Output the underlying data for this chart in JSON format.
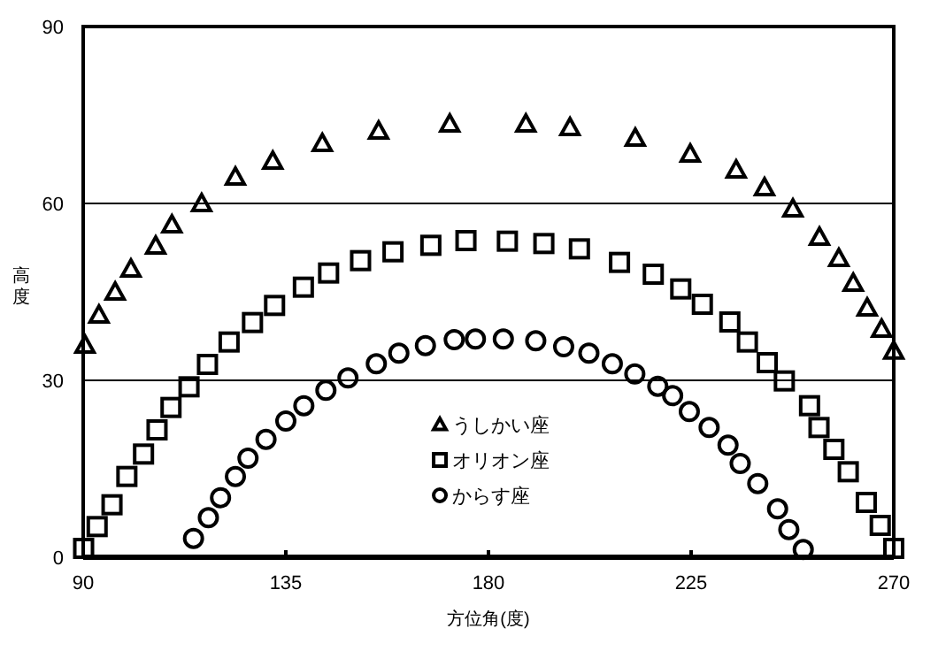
{
  "chart_data": {
    "type": "scatter",
    "xlabel": "方位角(度)",
    "ylabel": "高度",
    "xlim": [
      90,
      270
    ],
    "xticks": [
      90,
      135,
      180,
      225,
      270
    ],
    "ylim": [
      0,
      90
    ],
    "yticks": [
      0,
      30,
      60,
      90
    ],
    "grid": "y",
    "legend": "bottom",
    "series": [
      {
        "name": "うしかい座",
        "color": "#000000",
        "marker": "triangle",
        "x": [
          90.4,
          93.5,
          97.1,
          100.6,
          106.1,
          109.7,
          116.3,
          123.8,
          132.1,
          143.1,
          155.6,
          171.4,
          188.3,
          198.1,
          212.6,
          224.8,
          235.0,
          241.3,
          247.6,
          253.5,
          257.8,
          261.0,
          264.1,
          267.3,
          270.0
        ],
        "values": [
          36.0,
          41.1,
          45.0,
          48.9,
          52.8,
          56.4,
          60.0,
          64.5,
          67.2,
          70.2,
          72.3,
          73.5,
          73.5,
          72.9,
          71.1,
          68.4,
          65.7,
          62.7,
          59.1,
          54.3,
          50.7,
          46.5,
          42.3,
          38.7,
          35.0
        ]
      },
      {
        "name": "オリオン座",
        "color": "#000000",
        "marker": "square",
        "x": [
          90.1,
          93.1,
          96.4,
          99.7,
          103.4,
          106.4,
          109.5,
          113.5,
          117.6,
          122.4,
          127.6,
          132.5,
          138.9,
          144.5,
          151.6,
          158.8,
          167.2,
          175.0,
          184.2,
          192.3,
          200.2,
          209.1,
          216.6,
          222.7,
          227.5,
          233.6,
          237.5,
          241.9,
          245.7,
          251.3,
          253.4,
          256.7,
          259.9,
          263.9,
          267.0,
          270.0
        ],
        "values": [
          1.5,
          5.2,
          8.9,
          13.7,
          17.5,
          21.6,
          25.4,
          28.9,
          32.7,
          36.5,
          39.8,
          42.7,
          45.8,
          48.2,
          50.3,
          51.8,
          52.9,
          53.7,
          53.6,
          53.2,
          52.3,
          50.0,
          48.0,
          45.5,
          42.9,
          39.9,
          36.5,
          33.0,
          29.9,
          25.7,
          22.0,
          18.3,
          14.5,
          9.3,
          5.4,
          1.5
        ]
      },
      {
        "name": "からす座",
        "color": "#000000",
        "marker": "circle",
        "x": [
          114.5,
          117.8,
          120.5,
          123.8,
          126.6,
          130.6,
          135.0,
          139.0,
          143.9,
          148.8,
          155.1,
          160.1,
          166.0,
          172.4,
          177.1,
          183.3,
          190.5,
          196.7,
          202.3,
          207.5,
          212.5,
          217.6,
          220.9,
          224.6,
          229.0,
          233.2,
          235.9,
          239.8,
          244.2,
          246.7,
          249.9
        ],
        "values": [
          3.2,
          6.7,
          10.1,
          13.7,
          16.8,
          20.0,
          23.1,
          25.7,
          28.3,
          30.4,
          32.8,
          34.6,
          35.9,
          36.9,
          37.0,
          37.0,
          36.7,
          35.7,
          34.6,
          32.8,
          31.1,
          29.0,
          27.4,
          24.7,
          22.0,
          19.0,
          15.9,
          12.5,
          8.2,
          4.7,
          1.3
        ]
      }
    ]
  }
}
